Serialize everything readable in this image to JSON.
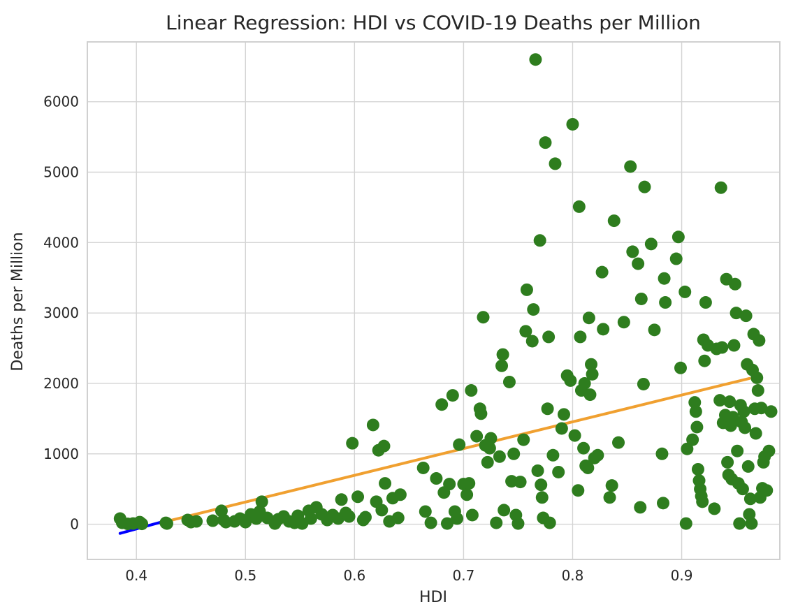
{
  "colors": {
    "points": "#2e7d1e",
    "fit_line": "#f0a030",
    "extrap_line": "#0000ff",
    "grid": "#d4d4d4"
  },
  "chart_data": {
    "type": "scatter",
    "title": "Linear Regression: HDI vs COVID-19 Deaths per Million",
    "xlabel": "HDI",
    "ylabel": "Deaths per Million",
    "xlim": [
      0.355,
      0.99
    ],
    "ylim": [
      -500,
      6850
    ],
    "xticks": [
      0.4,
      0.5,
      0.6,
      0.7,
      0.8,
      0.9
    ],
    "xtick_labels": [
      "0.4",
      "0.5",
      "0.6",
      "0.7",
      "0.8",
      "0.9"
    ],
    "yticks": [
      0,
      1000,
      2000,
      3000,
      4000,
      5000,
      6000
    ],
    "ytick_labels": [
      "0",
      "1000",
      "2000",
      "3000",
      "4000",
      "5000",
      "6000"
    ],
    "grid": true,
    "points": [
      [
        0.385,
        80
      ],
      [
        0.387,
        20
      ],
      [
        0.392,
        5
      ],
      [
        0.397,
        10
      ],
      [
        0.403,
        30
      ],
      [
        0.405,
        5
      ],
      [
        0.427,
        20
      ],
      [
        0.428,
        10
      ],
      [
        0.447,
        60
      ],
      [
        0.45,
        30
      ],
      [
        0.455,
        40
      ],
      [
        0.47,
        50
      ],
      [
        0.478,
        190
      ],
      [
        0.48,
        60
      ],
      [
        0.482,
        30
      ],
      [
        0.49,
        40
      ],
      [
        0.495,
        80
      ],
      [
        0.5,
        30
      ],
      [
        0.505,
        140
      ],
      [
        0.51,
        80
      ],
      [
        0.513,
        180
      ],
      [
        0.515,
        320
      ],
      [
        0.52,
        90
      ],
      [
        0.527,
        10
      ],
      [
        0.53,
        70
      ],
      [
        0.535,
        110
      ],
      [
        0.54,
        40
      ],
      [
        0.545,
        20
      ],
      [
        0.548,
        120
      ],
      [
        0.552,
        10
      ],
      [
        0.558,
        190
      ],
      [
        0.56,
        80
      ],
      [
        0.565,
        240
      ],
      [
        0.57,
        140
      ],
      [
        0.575,
        60
      ],
      [
        0.58,
        130
      ],
      [
        0.585,
        80
      ],
      [
        0.588,
        350
      ],
      [
        0.592,
        160
      ],
      [
        0.595,
        110
      ],
      [
        0.598,
        1150
      ],
      [
        0.603,
        390
      ],
      [
        0.608,
        60
      ],
      [
        0.61,
        100
      ],
      [
        0.617,
        1410
      ],
      [
        0.62,
        320
      ],
      [
        0.622,
        1050
      ],
      [
        0.625,
        200
      ],
      [
        0.627,
        1110
      ],
      [
        0.628,
        580
      ],
      [
        0.632,
        40
      ],
      [
        0.635,
        370
      ],
      [
        0.64,
        90
      ],
      [
        0.642,
        420
      ],
      [
        0.663,
        800
      ],
      [
        0.665,
        180
      ],
      [
        0.67,
        20
      ],
      [
        0.675,
        650
      ],
      [
        0.68,
        1700
      ],
      [
        0.682,
        450
      ],
      [
        0.685,
        10
      ],
      [
        0.687,
        570
      ],
      [
        0.69,
        1830
      ],
      [
        0.692,
        180
      ],
      [
        0.694,
        80
      ],
      [
        0.696,
        1130
      ],
      [
        0.7,
        570
      ],
      [
        0.703,
        420
      ],
      [
        0.705,
        580
      ],
      [
        0.707,
        1900
      ],
      [
        0.708,
        130
      ],
      [
        0.712,
        1250
      ],
      [
        0.715,
        1640
      ],
      [
        0.716,
        1570
      ],
      [
        0.718,
        2940
      ],
      [
        0.72,
        1120
      ],
      [
        0.722,
        880
      ],
      [
        0.724,
        1080
      ],
      [
        0.725,
        1220
      ],
      [
        0.73,
        20
      ],
      [
        0.733,
        960
      ],
      [
        0.735,
        2250
      ],
      [
        0.736,
        2410
      ],
      [
        0.737,
        200
      ],
      [
        0.742,
        2020
      ],
      [
        0.744,
        610
      ],
      [
        0.746,
        1000
      ],
      [
        0.748,
        130
      ],
      [
        0.75,
        10
      ],
      [
        0.752,
        600
      ],
      [
        0.755,
        1200
      ],
      [
        0.757,
        2740
      ],
      [
        0.758,
        3330
      ],
      [
        0.763,
        2600
      ],
      [
        0.764,
        3050
      ],
      [
        0.766,
        6600
      ],
      [
        0.768,
        760
      ],
      [
        0.77,
        4030
      ],
      [
        0.771,
        560
      ],
      [
        0.772,
        380
      ],
      [
        0.773,
        90
      ],
      [
        0.775,
        5420
      ],
      [
        0.777,
        1640
      ],
      [
        0.778,
        2660
      ],
      [
        0.779,
        20
      ],
      [
        0.782,
        980
      ],
      [
        0.784,
        5120
      ],
      [
        0.787,
        740
      ],
      [
        0.79,
        1360
      ],
      [
        0.792,
        1560
      ],
      [
        0.795,
        2110
      ],
      [
        0.798,
        2040
      ],
      [
        0.8,
        5680
      ],
      [
        0.802,
        1260
      ],
      [
        0.805,
        480
      ],
      [
        0.806,
        4510
      ],
      [
        0.807,
        2660
      ],
      [
        0.808,
        1900
      ],
      [
        0.81,
        1080
      ],
      [
        0.811,
        2000
      ],
      [
        0.812,
        830
      ],
      [
        0.814,
        800
      ],
      [
        0.815,
        2930
      ],
      [
        0.816,
        1840
      ],
      [
        0.817,
        2270
      ],
      [
        0.818,
        2130
      ],
      [
        0.82,
        940
      ],
      [
        0.823,
        980
      ],
      [
        0.827,
        3580
      ],
      [
        0.828,
        2770
      ],
      [
        0.834,
        380
      ],
      [
        0.836,
        550
      ],
      [
        0.838,
        4310
      ],
      [
        0.842,
        1160
      ],
      [
        0.847,
        2870
      ],
      [
        0.853,
        5080
      ],
      [
        0.855,
        3870
      ],
      [
        0.86,
        3700
      ],
      [
        0.862,
        240
      ],
      [
        0.863,
        3200
      ],
      [
        0.865,
        1990
      ],
      [
        0.866,
        4790
      ],
      [
        0.872,
        3980
      ],
      [
        0.875,
        2760
      ],
      [
        0.882,
        1000
      ],
      [
        0.883,
        300
      ],
      [
        0.884,
        3490
      ],
      [
        0.885,
        3150
      ],
      [
        0.895,
        3770
      ],
      [
        0.897,
        4080
      ],
      [
        0.899,
        2220
      ],
      [
        0.903,
        3300
      ],
      [
        0.904,
        10
      ],
      [
        0.905,
        1070
      ],
      [
        0.91,
        1200
      ],
      [
        0.912,
        1730
      ],
      [
        0.913,
        1600
      ],
      [
        0.914,
        1380
      ],
      [
        0.915,
        780
      ],
      [
        0.916,
        620
      ],
      [
        0.917,
        500
      ],
      [
        0.918,
        400
      ],
      [
        0.919,
        320
      ],
      [
        0.92,
        2620
      ],
      [
        0.921,
        2320
      ],
      [
        0.922,
        3150
      ],
      [
        0.924,
        2540
      ],
      [
        0.93,
        220
      ],
      [
        0.932,
        2490
      ],
      [
        0.935,
        1760
      ],
      [
        0.936,
        4780
      ],
      [
        0.937,
        2510
      ],
      [
        0.938,
        1440
      ],
      [
        0.94,
        1550
      ],
      [
        0.941,
        3480
      ],
      [
        0.942,
        880
      ],
      [
        0.943,
        700
      ],
      [
        0.944,
        1740
      ],
      [
        0.945,
        1400
      ],
      [
        0.946,
        640
      ],
      [
        0.947,
        1520
      ],
      [
        0.948,
        2540
      ],
      [
        0.949,
        3410
      ],
      [
        0.95,
        3000
      ],
      [
        0.951,
        1040
      ],
      [
        0.952,
        580
      ],
      [
        0.953,
        10
      ],
      [
        0.954,
        1690
      ],
      [
        0.955,
        1450
      ],
      [
        0.956,
        500
      ],
      [
        0.957,
        1600
      ],
      [
        0.958,
        1370
      ],
      [
        0.959,
        2960
      ],
      [
        0.96,
        2270
      ],
      [
        0.961,
        820
      ],
      [
        0.962,
        140
      ],
      [
        0.963,
        360
      ],
      [
        0.964,
        10
      ],
      [
        0.965,
        2190
      ],
      [
        0.966,
        2700
      ],
      [
        0.967,
        1640
      ],
      [
        0.968,
        1290
      ],
      [
        0.969,
        2080
      ],
      [
        0.97,
        1900
      ],
      [
        0.971,
        2610
      ],
      [
        0.972,
        380
      ],
      [
        0.973,
        1650
      ],
      [
        0.974,
        510
      ],
      [
        0.975,
        880
      ],
      [
        0.976,
        960
      ],
      [
        0.978,
        480
      ],
      [
        0.98,
        1040
      ],
      [
        0.982,
        1600
      ]
    ],
    "series": [
      {
        "type": "line",
        "color": "#0000ff",
        "x": [
          0.385,
          0.425
        ],
        "y": [
          -130,
          40
        ]
      },
      {
        "type": "line",
        "color": "#f0a030",
        "x": [
          0.425,
          0.962
        ],
        "y": [
          30,
          2070
        ]
      }
    ]
  }
}
